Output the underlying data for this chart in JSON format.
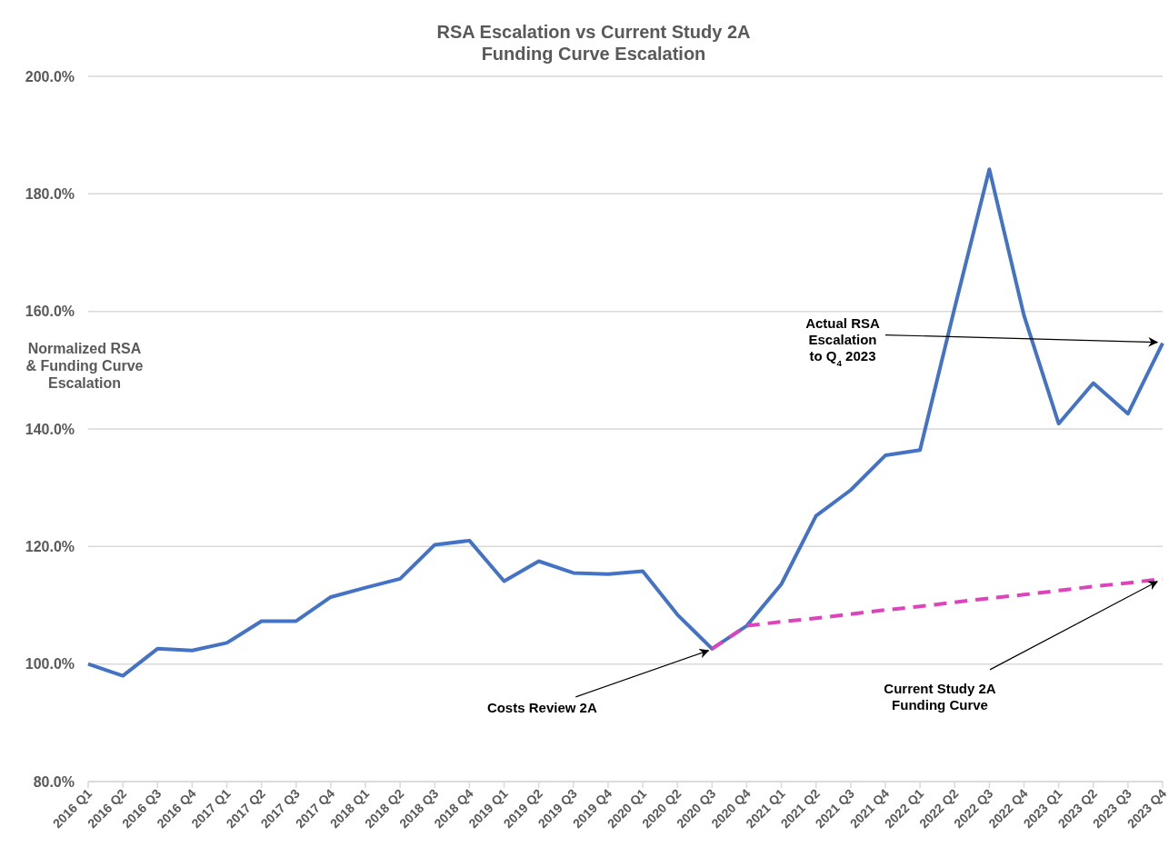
{
  "chart_data": {
    "type": "line",
    "title": "RSA Escalation vs Current Study 2A\nFunding Curve Escalation",
    "ylabel": "Normalized RSA\n& Funding Curve\nEscalation",
    "categories": [
      "2016 Q1",
      "2016 Q2",
      "2016 Q3",
      "2016 Q4",
      "2017 Q1",
      "2017 Q2",
      "2017 Q3",
      "2017 Q4",
      "2018 Q1",
      "2018 Q2",
      "2018 Q3",
      "2018 Q4",
      "2019 Q1",
      "2019 Q2",
      "2019 Q3",
      "2019 Q4",
      "2020 Q1",
      "2020 Q2",
      "2020 Q3",
      "2020 Q4",
      "2021 Q1",
      "2021 Q2",
      "2021 Q3",
      "2021 Q4",
      "2022 Q1",
      "2022 Q2",
      "2022 Q3",
      "2022 Q4",
      "2023 Q1",
      "2023 Q2",
      "2023 Q3",
      "2023 Q4"
    ],
    "series": [
      {
        "color": "#4472c4",
        "line_style": "solid",
        "values": [
          100.0,
          98.0,
          102.6,
          102.3,
          103.6,
          107.3,
          107.3,
          111.4,
          113.0,
          114.5,
          120.3,
          121.0,
          114.1,
          117.5,
          115.5,
          115.3,
          115.8,
          108.4,
          102.6,
          106.5,
          113.6,
          125.2,
          129.6,
          135.5,
          136.4,
          160.6,
          184.2,
          159.3,
          140.9,
          147.8,
          142.6,
          154.6
        ]
      },
      {
        "color": "#dd44bb",
        "line_style": "dashed",
        "values": [
          null,
          null,
          null,
          null,
          null,
          null,
          null,
          null,
          null,
          null,
          null,
          null,
          null,
          null,
          null,
          null,
          null,
          null,
          102.6,
          106.5,
          107.2,
          107.8,
          108.5,
          109.2,
          109.8,
          110.5,
          111.2,
          111.8,
          112.5,
          113.2,
          113.8,
          114.5
        ]
      }
    ],
    "ylim": [
      80,
      200
    ],
    "yticks": [
      {
        "value": 80,
        "label": "80.0%"
      },
      {
        "value": 100,
        "label": "100.0%"
      },
      {
        "value": 120,
        "label": "120.0%"
      },
      {
        "value": 140,
        "label": "140.0%"
      },
      {
        "value": 160,
        "label": "160.0%"
      },
      {
        "value": 180,
        "label": "180.0%"
      },
      {
        "value": 200,
        "label": "200.0%"
      }
    ],
    "grid": "y",
    "marker": "none",
    "annotations": [
      {
        "text": "Costs Review 2A",
        "x": "2020 Q3",
        "y": 102.6
      },
      {
        "text": "Actual RSA\nEscalation\nto Q$_{4}$ 2023",
        "x": "2023 Q4",
        "y": 154.6
      },
      {
        "text": "Current Study 2A\nFunding Curve",
        "x": "2023 Q4",
        "y": 114.5
      }
    ]
  }
}
